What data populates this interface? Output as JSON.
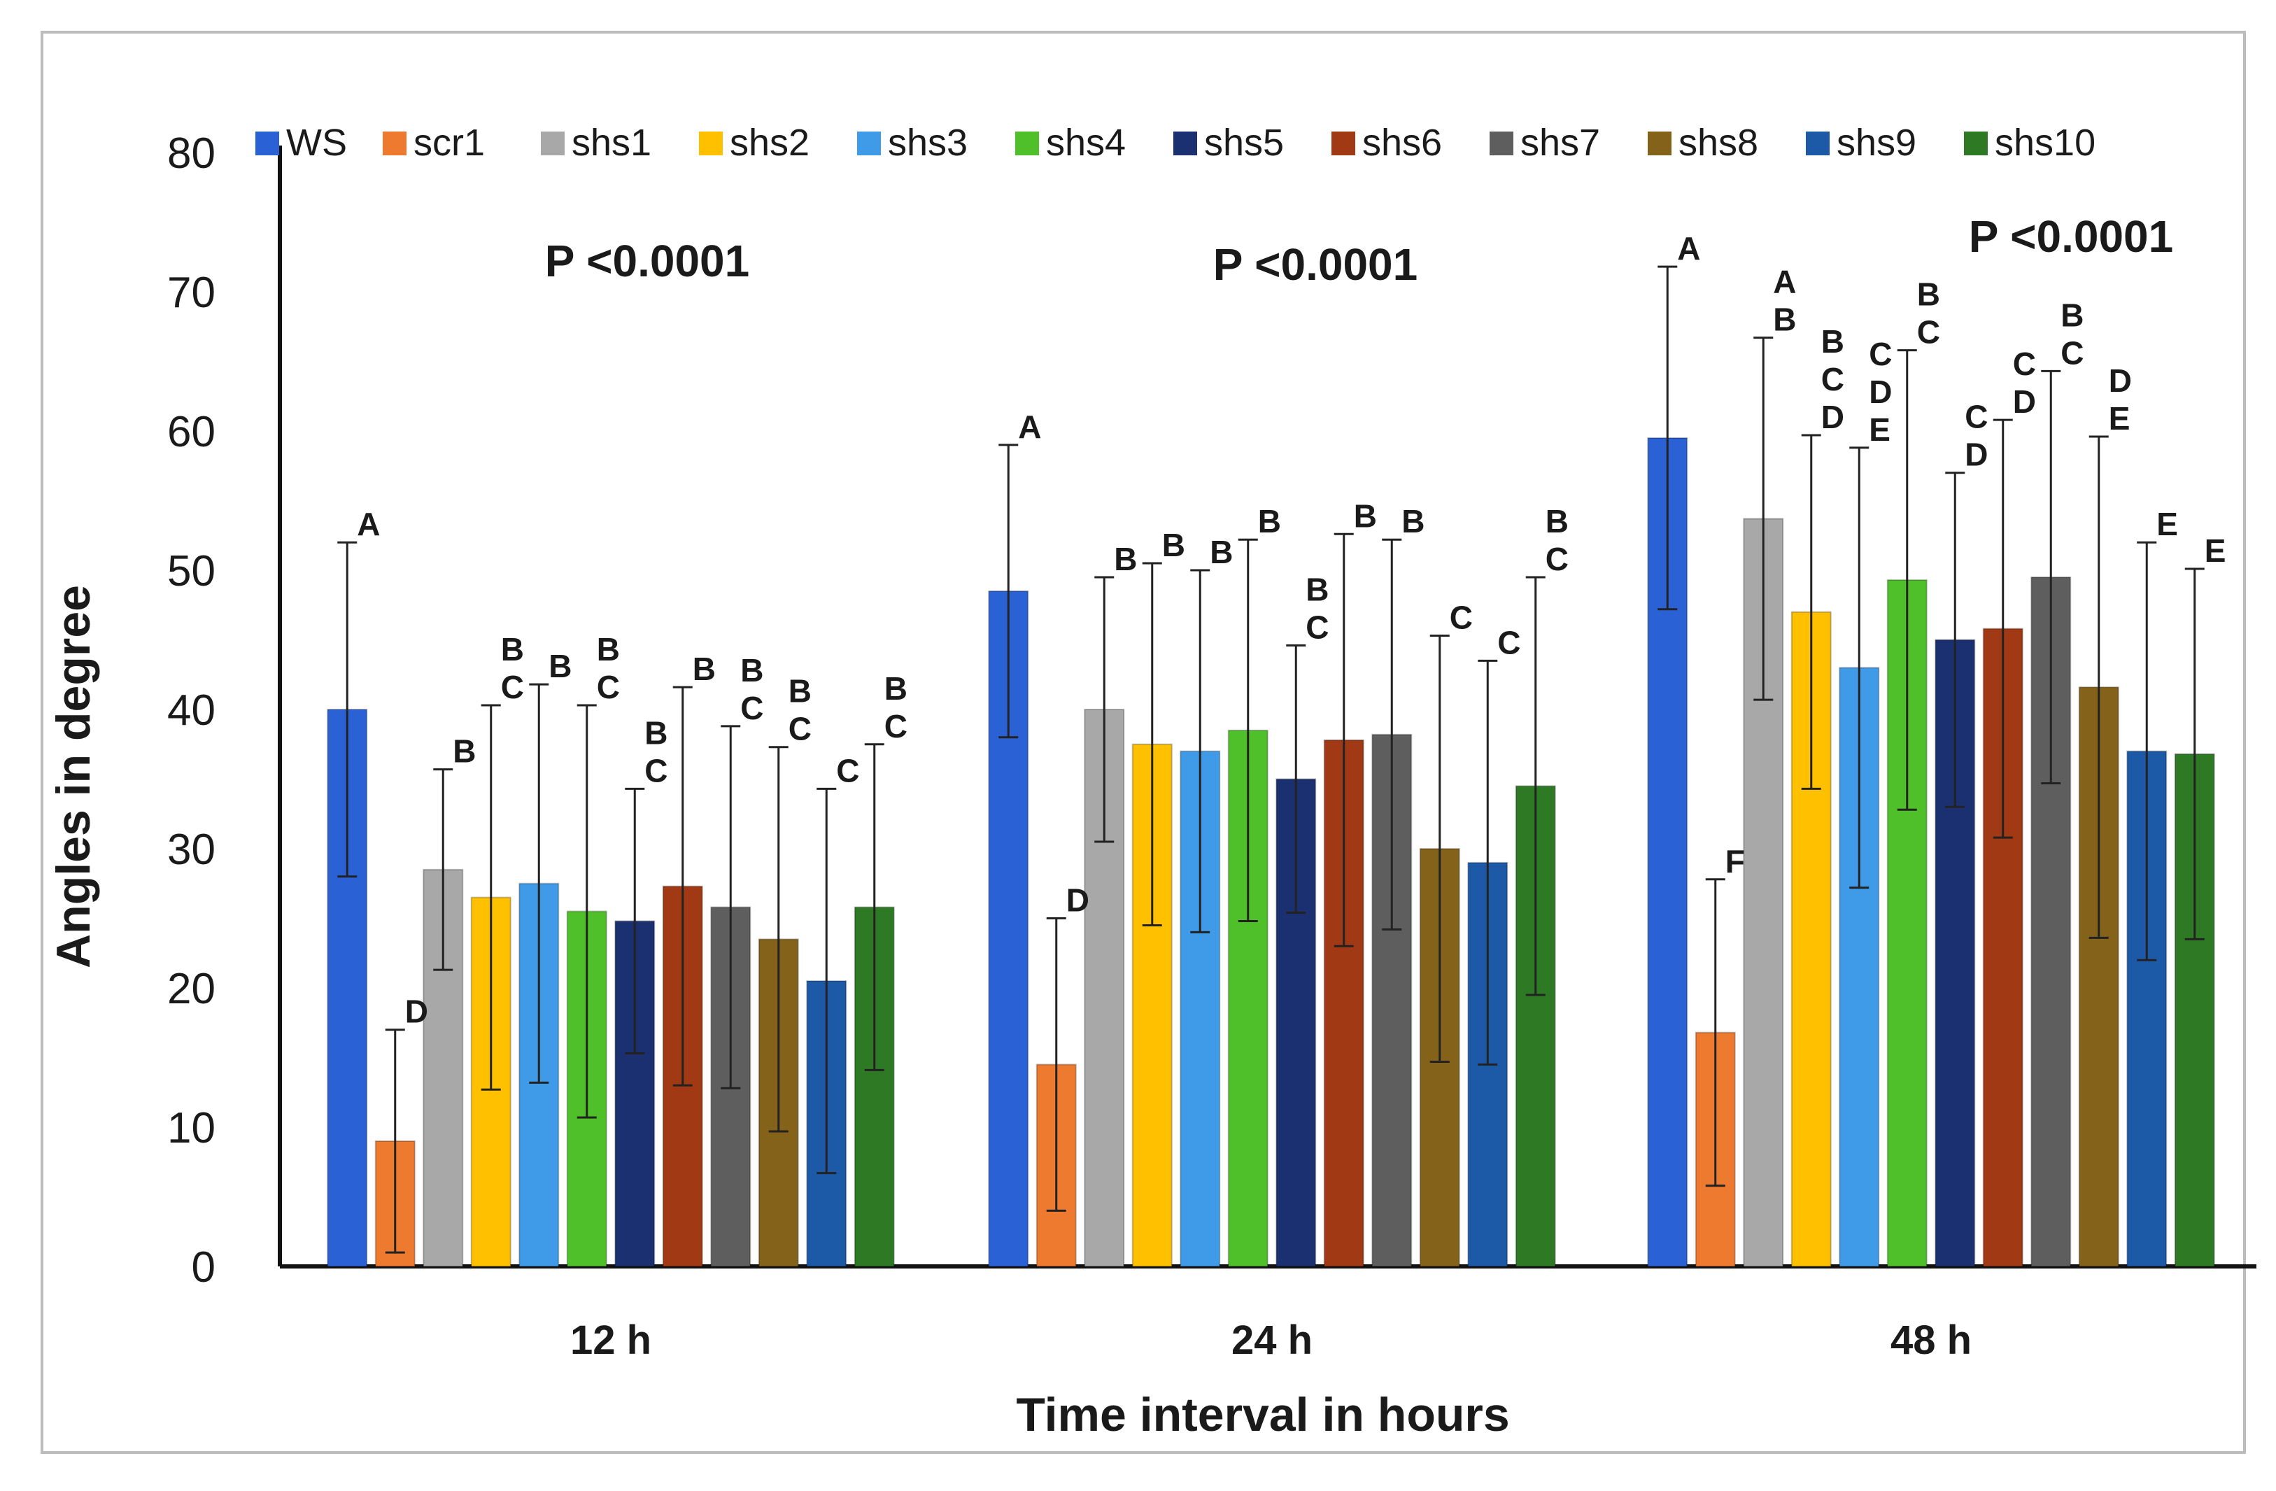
{
  "chart_data": {
    "type": "bar",
    "title": "",
    "xlabel": "Time interval in hours",
    "ylabel": "Angles in degree",
    "ylim": [
      0,
      80
    ],
    "yticks": [
      0,
      10,
      20,
      30,
      40,
      50,
      60,
      70,
      80
    ],
    "grid": false,
    "legend_position": "top",
    "categories": [
      "12 h",
      "24 h",
      "48 h"
    ],
    "series": [
      {
        "name": "WS",
        "color": "#2a62d6",
        "values": [
          40,
          48.5,
          59.5
        ],
        "errors": [
          12,
          10.5,
          12.3
        ],
        "significance": [
          "A",
          "A",
          "A"
        ]
      },
      {
        "name": "scr1",
        "color": "#ee7a30",
        "values": [
          9,
          14.5,
          16.8
        ],
        "errors": [
          8,
          10.5,
          11
        ],
        "significance": [
          "D",
          "D",
          "F"
        ]
      },
      {
        "name": "shs1",
        "color": "#a8a8a8",
        "values": [
          28.5,
          40,
          53.7
        ],
        "errors": [
          7.2,
          9.5,
          13
        ],
        "significance": [
          "B",
          "B",
          "A\nB"
        ]
      },
      {
        "name": "shs2",
        "color": "#ffc000",
        "values": [
          26.5,
          37.5,
          47
        ],
        "errors": [
          13.8,
          13,
          12.7
        ],
        "significance": [
          "B\nC",
          "B",
          "B\nC\nD"
        ]
      },
      {
        "name": "shs3",
        "color": "#3f9be8",
        "values": [
          27.5,
          37,
          43
        ],
        "errors": [
          14.3,
          13,
          15.8
        ],
        "significance": [
          "B",
          "B",
          "C\nD\nE"
        ]
      },
      {
        "name": "shs4",
        "color": "#4fc02a",
        "values": [
          25.5,
          38.5,
          49.3
        ],
        "errors": [
          14.8,
          13.7,
          16.5
        ],
        "significance": [
          "B\nC",
          "B",
          "B\nC"
        ]
      },
      {
        "name": "shs5",
        "color": "#1b3070",
        "values": [
          24.8,
          35,
          45
        ],
        "errors": [
          9.5,
          9.6,
          12
        ],
        "significance": [
          "B\nC",
          "B\nC",
          "C\nD"
        ]
      },
      {
        "name": "shs6",
        "color": "#a13a14",
        "values": [
          27.3,
          37.8,
          45.8
        ],
        "errors": [
          14.3,
          14.8,
          15
        ],
        "significance": [
          "B",
          "B",
          "C\nD"
        ]
      },
      {
        "name": "shs7",
        "color": "#5e5e5e",
        "values": [
          25.8,
          38.2,
          49.5
        ],
        "errors": [
          13,
          14,
          14.8
        ],
        "significance": [
          "B\nC",
          "B",
          "B\nC"
        ]
      },
      {
        "name": "shs8",
        "color": "#85621a",
        "values": [
          23.5,
          30,
          41.6
        ],
        "errors": [
          13.8,
          15.3,
          18
        ],
        "significance": [
          "B\nC",
          "C",
          "D\nE"
        ]
      },
      {
        "name": "shs9",
        "color": "#1c5aa8",
        "values": [
          20.5,
          29,
          37
        ],
        "errors": [
          13.8,
          14.5,
          15
        ],
        "significance": [
          "C",
          "C",
          "E"
        ]
      },
      {
        "name": "shs10",
        "color": "#2e7a24",
        "values": [
          25.8,
          34.5,
          36.8
        ],
        "errors": [
          11.7,
          15,
          13.3
        ],
        "significance": [
          "B\nC",
          "B\nC",
          "E"
        ]
      }
    ],
    "annotations": [
      "P <0.0001",
      "P <0.0001",
      "P <0.0001"
    ]
  }
}
